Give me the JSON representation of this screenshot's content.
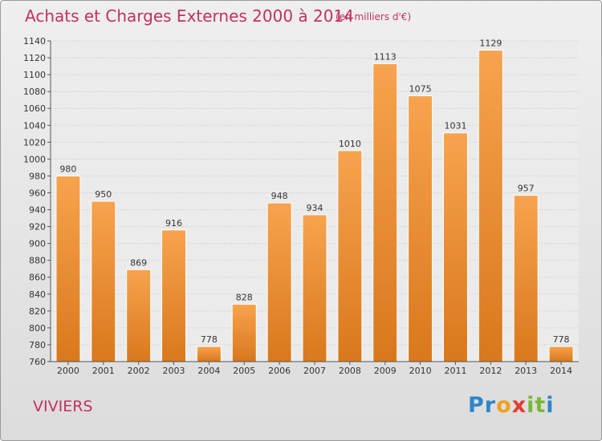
{
  "header": {
    "title": "Achats et Charges Externes 2000 à 2014",
    "subtitle": "(en milliers d'€)"
  },
  "footer": {
    "city": "VIVIERS",
    "logo_letters": [
      "P",
      "r",
      "o",
      "x",
      "i",
      "t",
      "i"
    ],
    "logo_colors": [
      "#2e86c9",
      "#2e86c9",
      "#f0a020",
      "#e23a2c",
      "#7ab733",
      "#7ab733",
      "#2e86c9"
    ]
  },
  "chart_data": {
    "type": "bar",
    "categories": [
      "2000",
      "2001",
      "2002",
      "2003",
      "2004",
      "2005",
      "2006",
      "2007",
      "2008",
      "2009",
      "2010",
      "2011",
      "2012",
      "2013",
      "2014"
    ],
    "values": [
      980,
      950,
      869,
      916,
      778,
      828,
      948,
      934,
      1010,
      1113,
      1075,
      1031,
      1129,
      957,
      778
    ],
    "data_labels": [
      "980",
      "950",
      "869",
      "916",
      "778",
      "828",
      "948",
      "934",
      "1010",
      "1113",
      "1075",
      "1031",
      "1129",
      "957",
      "778"
    ],
    "yticks": [
      "760",
      "780",
      "800",
      "820",
      "840",
      "860",
      "880",
      "900",
      "920",
      "940",
      "960",
      "980",
      "1000",
      "1020",
      "1040",
      "1060",
      "1080",
      "1100",
      "1120",
      "1140"
    ],
    "ylim": [
      760,
      1140
    ],
    "ystep": 20,
    "grid": true,
    "bar_color_top": "#f7a34e",
    "bar_color_bottom": "#d9781c",
    "xlabel": "",
    "ylabel": ""
  }
}
